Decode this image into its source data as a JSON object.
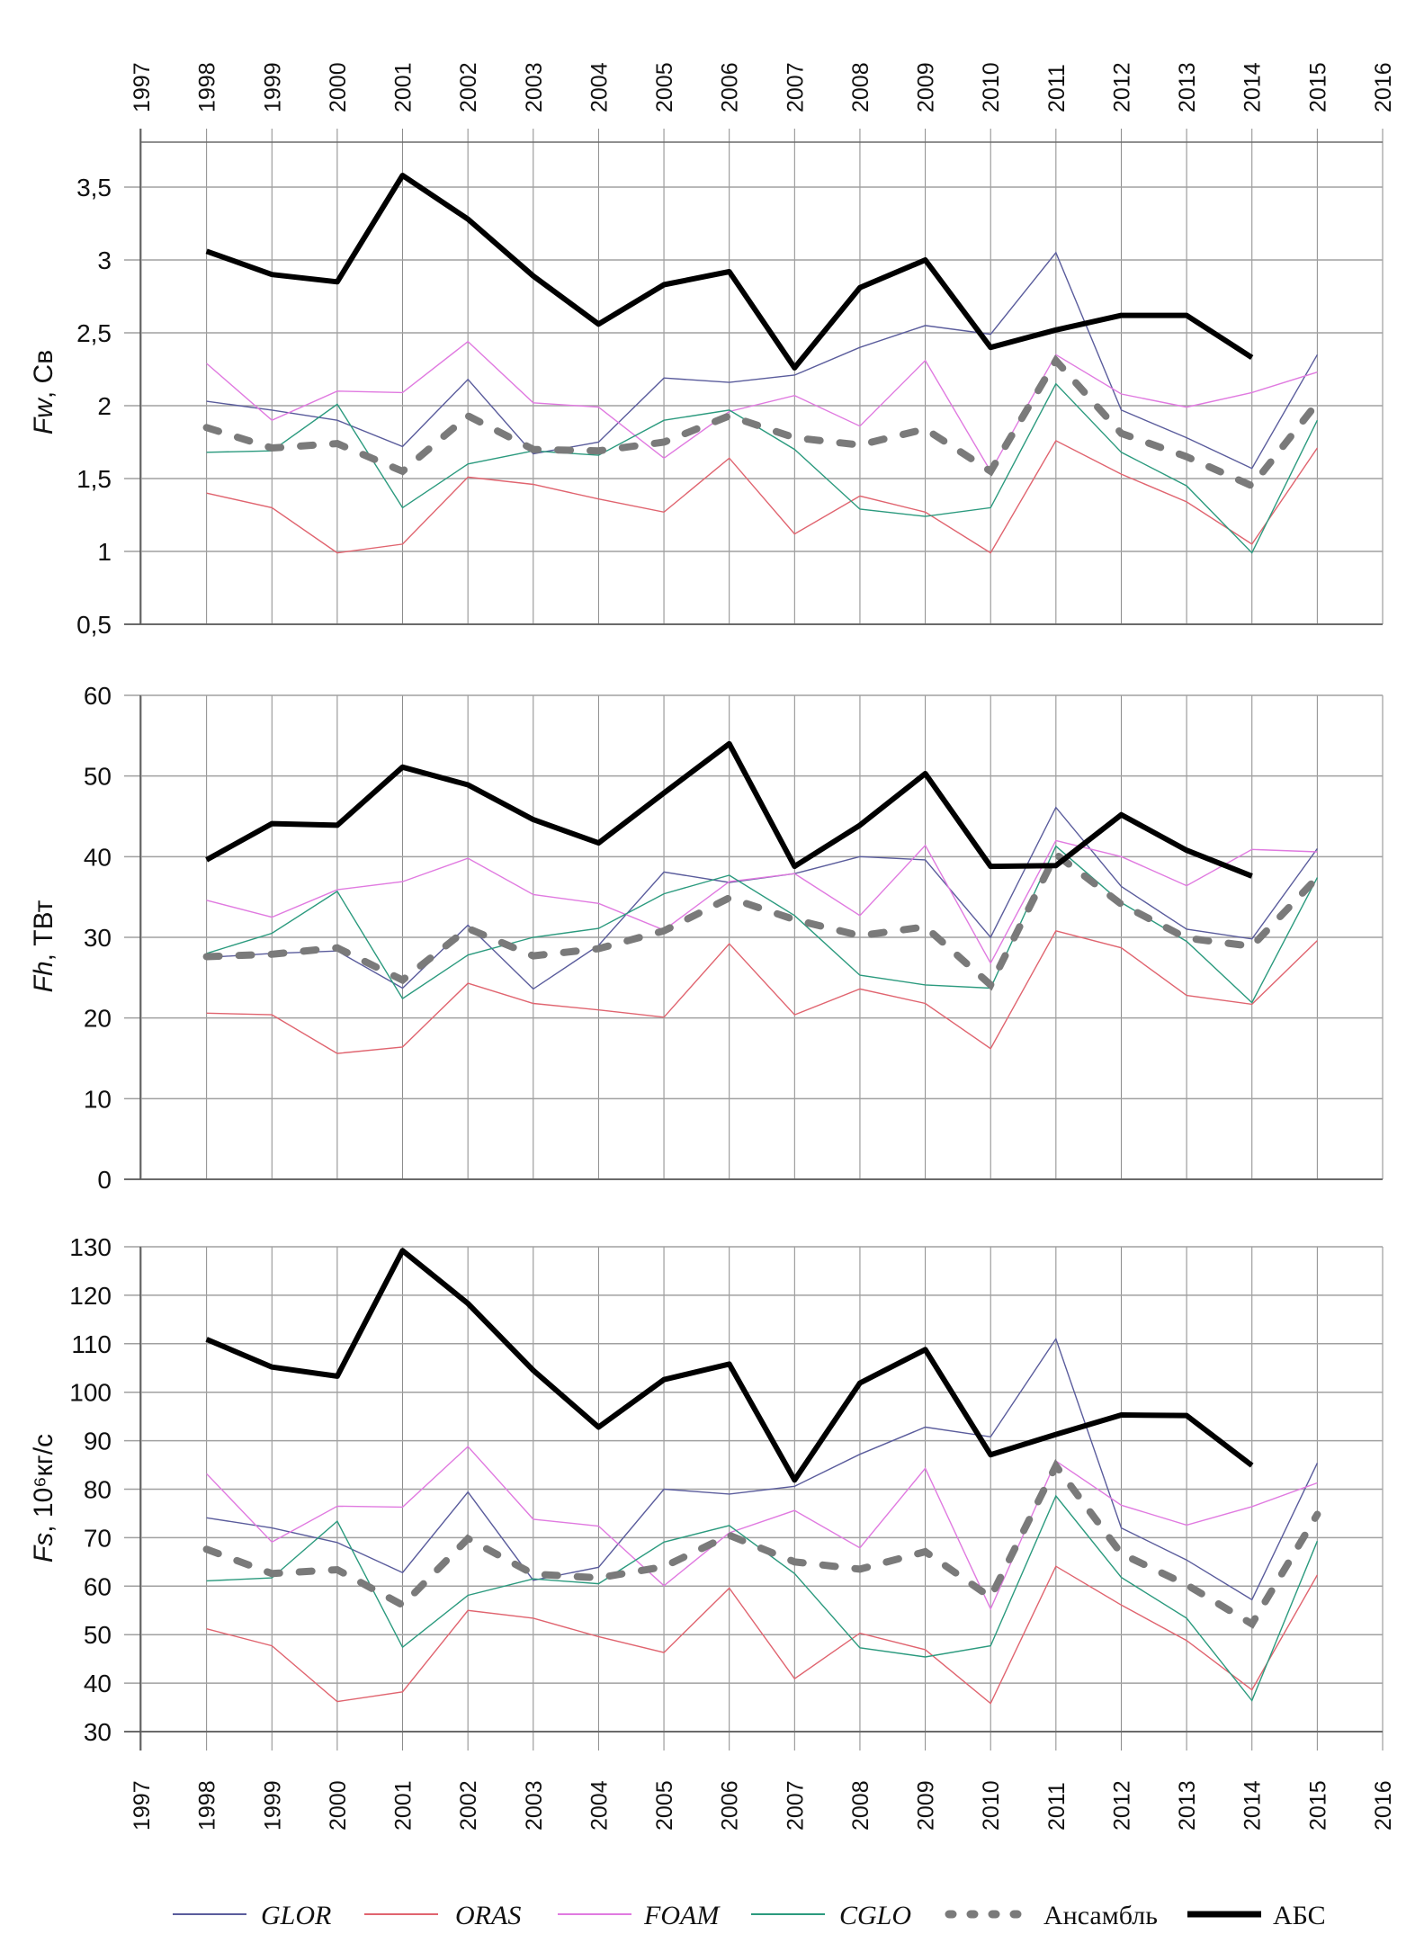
{
  "chart_data": {
    "type": "line",
    "x_label_years": [
      1997,
      1998,
      1999,
      2000,
      2001,
      2002,
      2003,
      2004,
      2005,
      2006,
      2007,
      2008,
      2009,
      2010,
      2011,
      2012,
      2013,
      2014,
      2015,
      2016
    ],
    "x": [
      1998,
      1999,
      2000,
      2001,
      2002,
      2003,
      2004,
      2005,
      2006,
      2007,
      2008,
      2009,
      2010,
      2011,
      2012,
      2013,
      2014,
      2015
    ],
    "xlim": [
      1997,
      2016
    ],
    "grid": true,
    "legend_position": "bottom",
    "legend": [
      {
        "key": "GLOR",
        "label": "GLOR",
        "italic": true,
        "color": "#5a5c9c",
        "style": "thin"
      },
      {
        "key": "ORAS",
        "label": "ORAS",
        "italic": true,
        "color": "#e0646f",
        "style": "thin"
      },
      {
        "key": "FOAM",
        "label": "FOAM",
        "italic": true,
        "color": "#e07ae0",
        "style": "thin"
      },
      {
        "key": "CGLO",
        "label": "CGLO",
        "italic": true,
        "color": "#2b9a7e",
        "style": "thin"
      },
      {
        "key": "ENS",
        "label": "Ансамбль",
        "italic": false,
        "color": "#7a7a7a",
        "style": "dashed"
      },
      {
        "key": "ABS",
        "label": "АБС",
        "italic": false,
        "color": "#000000",
        "style": "thick"
      }
    ],
    "panels": [
      {
        "id": "fw",
        "ylabel_var": "Fw",
        "ylabel_unit": ", Св",
        "ylim": [
          0.5,
          3.8
        ],
        "yticks": [
          0.5,
          1,
          1.5,
          2,
          2.5,
          3,
          3.5
        ],
        "ytick_labels": [
          "0,5",
          "1",
          "1,5",
          "2",
          "2,5",
          "3",
          "3,5"
        ],
        "series": {
          "GLOR": [
            2.03,
            1.97,
            1.9,
            1.72,
            2.18,
            1.67,
            1.75,
            2.19,
            2.16,
            2.21,
            2.4,
            2.55,
            2.49,
            3.05,
            1.97,
            1.78,
            1.57,
            2.35
          ],
          "ORAS": [
            1.4,
            1.3,
            0.99,
            1.05,
            1.51,
            1.46,
            1.36,
            1.27,
            1.64,
            1.12,
            1.38,
            1.27,
            0.99,
            1.76,
            1.53,
            1.34,
            1.05,
            1.71
          ],
          "FOAM": [
            2.29,
            1.9,
            2.1,
            2.09,
            2.44,
            2.02,
            1.99,
            1.64,
            1.96,
            2.07,
            1.86,
            2.31,
            1.55,
            2.35,
            2.08,
            1.99,
            2.09,
            2.23
          ],
          "CGLO": [
            1.68,
            1.69,
            2.01,
            1.3,
            1.6,
            1.69,
            1.66,
            1.9,
            1.97,
            1.7,
            1.29,
            1.24,
            1.3,
            2.15,
            1.68,
            1.45,
            0.99,
            1.9
          ],
          "ENS": [
            1.85,
            1.71,
            1.74,
            1.55,
            1.93,
            1.7,
            1.69,
            1.75,
            1.93,
            1.78,
            1.73,
            1.84,
            1.55,
            2.31,
            1.81,
            1.65,
            1.45,
            2.02
          ],
          "ABS": [
            3.06,
            2.9,
            2.85,
            3.58,
            3.28,
            2.89,
            2.56,
            2.83,
            2.92,
            2.26,
            2.81,
            3.0,
            2.4,
            2.52,
            2.62,
            2.62,
            2.33,
            null
          ]
        }
      },
      {
        "id": "fh",
        "ylabel_var": "Fh",
        "ylabel_unit": ", ТВт",
        "ylim": [
          0,
          60
        ],
        "yticks": [
          0,
          10,
          20,
          30,
          40,
          50,
          60
        ],
        "ytick_labels": [
          "0",
          "10",
          "20",
          "30",
          "40",
          "50",
          "60"
        ],
        "series": {
          "GLOR": [
            27.5,
            28.0,
            28.3,
            23.7,
            31.5,
            23.6,
            29.0,
            38.1,
            36.8,
            37.9,
            40.0,
            39.6,
            30.0,
            46.1,
            36.3,
            31.0,
            29.8,
            41.0
          ],
          "ORAS": [
            20.6,
            20.4,
            15.6,
            16.4,
            24.3,
            21.8,
            21.0,
            20.1,
            29.2,
            20.4,
            23.6,
            21.8,
            16.2,
            30.8,
            28.7,
            22.8,
            21.7,
            29.6
          ],
          "FOAM": [
            34.6,
            32.5,
            35.9,
            36.9,
            39.8,
            35.3,
            34.2,
            30.9,
            36.9,
            37.9,
            32.7,
            41.4,
            26.8,
            42.0,
            40.0,
            36.4,
            40.9,
            40.6
          ],
          "CGLO": [
            28.0,
            30.5,
            35.7,
            22.4,
            27.8,
            30.0,
            31.1,
            35.4,
            37.7,
            32.7,
            25.3,
            24.1,
            23.7,
            41.3,
            34.3,
            29.5,
            21.9,
            37.4
          ],
          "ENS": [
            27.6,
            27.9,
            28.7,
            24.7,
            31.1,
            27.7,
            28.6,
            30.8,
            34.9,
            32.2,
            30.2,
            31.3,
            24.1,
            40.3,
            34.1,
            29.9,
            28.9,
            37.4
          ],
          "ABS": [
            39.6,
            44.1,
            43.9,
            51.1,
            48.9,
            44.6,
            41.7,
            47.9,
            54.0,
            38.8,
            43.9,
            50.3,
            38.8,
            38.9,
            45.2,
            40.8,
            37.6,
            null
          ]
        }
      },
      {
        "id": "fs",
        "ylabel_var": "Fs",
        "ylabel_unit": ", 10⁶кг/с",
        "ylim": [
          30,
          130
        ],
        "yticks": [
          30,
          40,
          50,
          60,
          70,
          80,
          90,
          100,
          110,
          120,
          130
        ],
        "ytick_labels": [
          "30",
          "40",
          "50",
          "60",
          "70",
          "80",
          "90",
          "100",
          "110",
          "120",
          "130"
        ],
        "series": {
          "GLOR": [
            74.1,
            72.0,
            69.0,
            62.8,
            79.4,
            61.2,
            63.9,
            80.0,
            79.0,
            80.6,
            87.2,
            92.8,
            90.8,
            111.0,
            72.0,
            65.4,
            57.2,
            85.4
          ],
          "ORAS": [
            51.2,
            47.7,
            36.2,
            38.2,
            55.0,
            53.4,
            49.6,
            46.3,
            59.6,
            40.9,
            50.3,
            46.9,
            35.8,
            64.1,
            56.1,
            48.8,
            38.6,
            62.3
          ],
          "FOAM": [
            83.2,
            69.1,
            76.5,
            76.3,
            88.8,
            73.8,
            72.4,
            60.1,
            71.0,
            75.6,
            67.9,
            84.3,
            55.3,
            85.8,
            76.7,
            72.6,
            76.4,
            81.3
          ],
          "CGLO": [
            61.1,
            61.7,
            73.4,
            47.4,
            58.1,
            61.5,
            60.5,
            69.1,
            72.5,
            62.6,
            47.3,
            45.4,
            47.7,
            78.6,
            61.8,
            53.4,
            36.4,
            69.3
          ],
          "ENS": [
            67.6,
            62.6,
            63.4,
            56.1,
            69.8,
            62.5,
            61.7,
            64.0,
            70.5,
            65.0,
            63.5,
            67.1,
            57.7,
            84.8,
            66.7,
            60.3,
            52.2,
            74.8
          ],
          "ABS": [
            110.9,
            105.2,
            103.3,
            129.2,
            118.3,
            104.5,
            92.8,
            102.6,
            105.8,
            81.9,
            101.9,
            108.8,
            87.1,
            91.3,
            95.3,
            95.2,
            84.9,
            null
          ]
        }
      }
    ]
  }
}
